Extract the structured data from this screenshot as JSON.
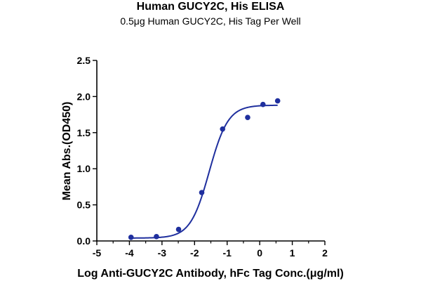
{
  "chart_data": {
    "type": "scatter",
    "title": "Human GUCY2C, His ELISA",
    "subtitle": "0.5μg Human GUCY2C, His Tag Per Well",
    "xlabel": "Log Anti-GUCY2C Antibody, hFc Tag Conc.(μg/ml)",
    "ylabel": "Mean Abs.(OD450)",
    "xlim": [
      -5,
      2
    ],
    "ylim": [
      0,
      2.5
    ],
    "xticks": [
      "-5",
      "-4",
      "-3",
      "-2",
      "-1",
      "0",
      "1",
      "2"
    ],
    "yticks": [
      "0.0",
      "0.5",
      "1.0",
      "1.5",
      "2.0",
      "2.5"
    ],
    "grid": false,
    "colors": {
      "series": "#1f2f9e",
      "axis": "#000000"
    },
    "series": [
      {
        "x": [
          -3.95,
          -3.17,
          -2.49,
          -1.78,
          -1.14,
          -0.37,
          0.1,
          0.55
        ],
        "y": [
          0.05,
          0.06,
          0.16,
          0.67,
          1.55,
          1.71,
          1.89,
          1.94
        ],
        "fit": "sigmoidal",
        "fit_params": {
          "bottom": 0.04,
          "top": 1.88,
          "logEC50": -1.55,
          "hill": 1.5
        }
      }
    ]
  }
}
